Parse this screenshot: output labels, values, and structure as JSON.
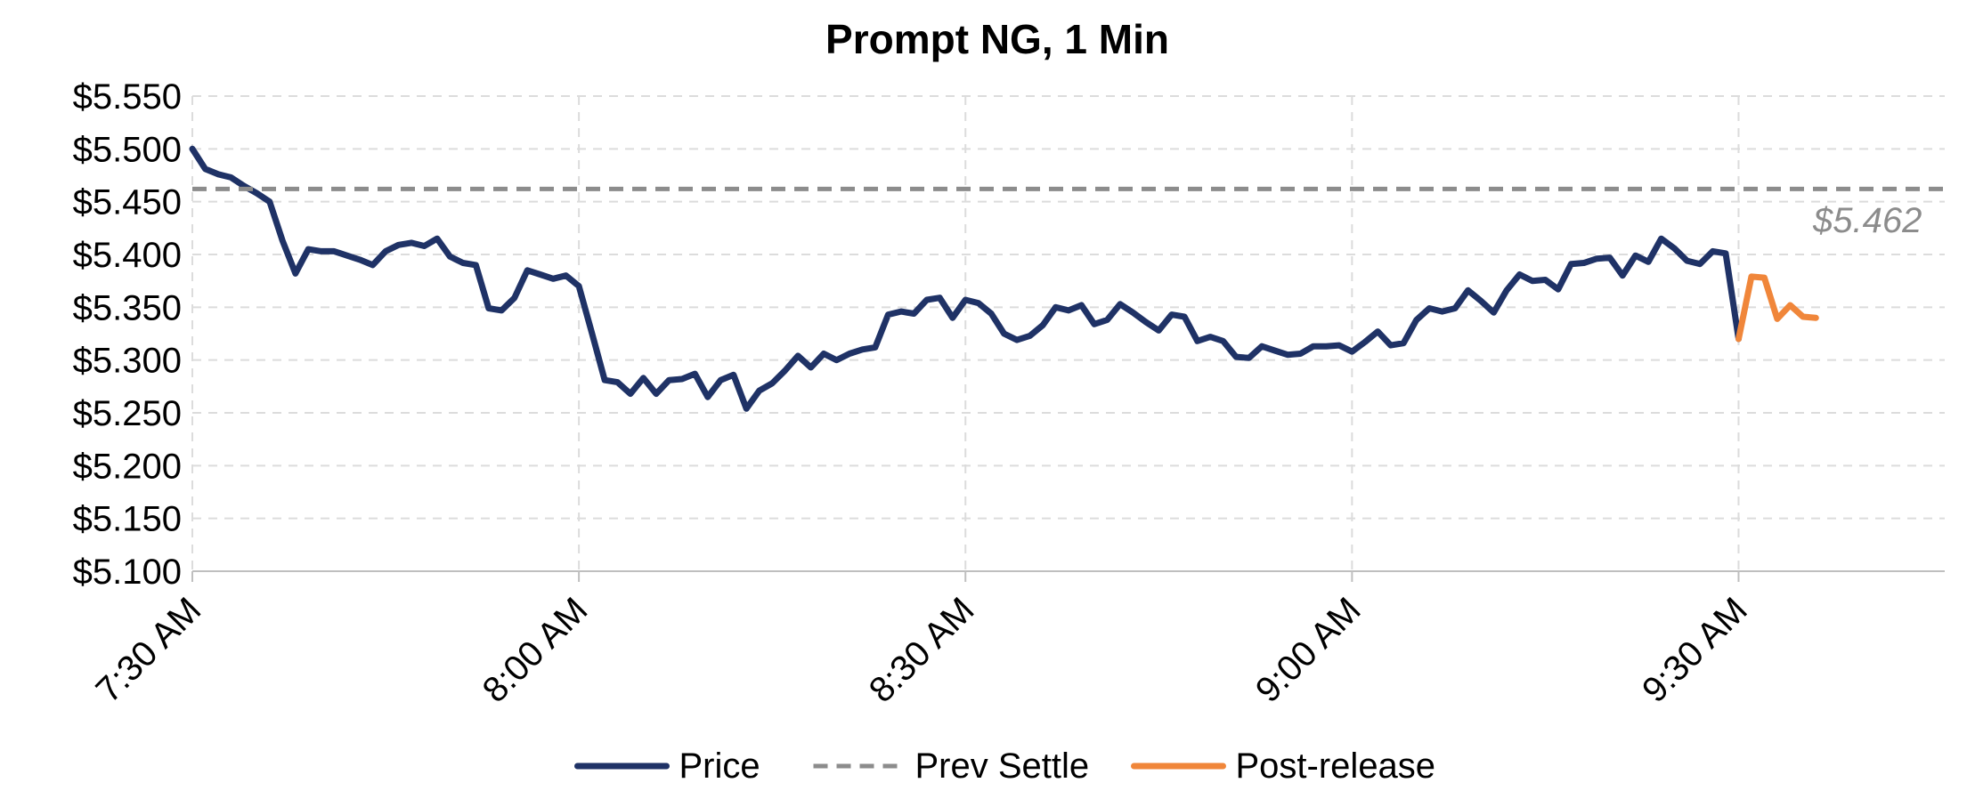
{
  "chart_data": {
    "type": "line",
    "title": "Prompt NG, 1 Min",
    "xlabel": "",
    "ylabel": "",
    "ylim": [
      5.1,
      5.55
    ],
    "y_ticks": [
      5.1,
      5.15,
      5.2,
      5.25,
      5.3,
      5.35,
      5.4,
      5.45,
      5.5,
      5.55
    ],
    "y_tick_labels": [
      "$5.100",
      "$5.150",
      "$5.200",
      "$5.250",
      "$5.300",
      "$5.350",
      "$5.400",
      "$5.450",
      "$5.500",
      "$5.550"
    ],
    "x_unit": "minutes after 7:30 AM",
    "xlim": [
      0,
      136
    ],
    "x_ticks": [
      0,
      30,
      60,
      90,
      120
    ],
    "x_tick_labels": [
      "7:30 AM",
      "8:00 AM",
      "8:30 AM",
      "9:00 AM",
      "9:30 AM"
    ],
    "grid": true,
    "legend": "bottom",
    "series": [
      {
        "name": "Price",
        "color": "#1f3266",
        "style": "solid",
        "x": [
          0,
          1,
          2,
          3,
          4,
          5,
          6,
          7,
          8,
          9,
          10,
          11,
          12,
          13,
          14,
          15,
          16,
          17,
          18,
          19,
          20,
          21,
          22,
          23,
          24,
          25,
          26,
          27,
          28,
          29,
          30,
          31,
          32,
          33,
          34,
          35,
          36,
          37,
          38,
          39,
          40,
          41,
          42,
          43,
          44,
          45,
          46,
          47,
          48,
          49,
          50,
          51,
          52,
          53,
          54,
          55,
          56,
          57,
          58,
          59,
          60,
          61,
          62,
          63,
          64,
          65,
          66,
          67,
          68,
          69,
          70,
          71,
          72,
          73,
          74,
          75,
          76,
          77,
          78,
          79,
          80,
          81,
          82,
          83,
          84,
          85,
          86,
          87,
          88,
          89,
          90,
          91,
          92,
          93,
          94,
          95,
          96,
          97,
          98,
          99,
          100,
          101,
          102,
          103,
          104,
          105,
          106,
          107,
          108,
          109,
          110,
          111,
          112,
          113,
          114,
          115,
          116,
          117,
          118,
          119,
          120
        ],
        "values": [
          5.5,
          5.481,
          5.476,
          5.473,
          5.465,
          5.458,
          5.45,
          5.413,
          5.382,
          5.405,
          5.403,
          5.403,
          5.399,
          5.395,
          5.39,
          5.403,
          5.409,
          5.411,
          5.408,
          5.415,
          5.398,
          5.392,
          5.39,
          5.349,
          5.347,
          5.359,
          5.385,
          5.381,
          5.377,
          5.38,
          5.37,
          5.326,
          5.281,
          5.279,
          5.268,
          5.283,
          5.268,
          5.281,
          5.282,
          5.287,
          5.265,
          5.281,
          5.286,
          5.254,
          5.271,
          5.278,
          5.29,
          5.304,
          5.293,
          5.306,
          5.3,
          5.306,
          5.31,
          5.312,
          5.343,
          5.346,
          5.344,
          5.357,
          5.359,
          5.34,
          5.357,
          5.354,
          5.344,
          5.325,
          5.319,
          5.323,
          5.333,
          5.35,
          5.347,
          5.352,
          5.334,
          5.338,
          5.353,
          5.345,
          5.336,
          5.328,
          5.343,
          5.341,
          5.318,
          5.322,
          5.318,
          5.303,
          5.302,
          5.313,
          5.309,
          5.305,
          5.306,
          5.313,
          5.313,
          5.314,
          5.308,
          5.317,
          5.327,
          5.314,
          5.316,
          5.338,
          5.349,
          5.346,
          5.349,
          5.366,
          5.356,
          5.345,
          5.366,
          5.381,
          5.375,
          5.376,
          5.367,
          5.391,
          5.392,
          5.396,
          5.397,
          5.38,
          5.399,
          5.393,
          5.415,
          5.406,
          5.394,
          5.391,
          5.403,
          5.401,
          5.32
        ]
      },
      {
        "name": "Prev Settle",
        "color": "#8c8c8c",
        "style": "dashed",
        "x": [
          0,
          136
        ],
        "values": [
          5.462,
          5.462
        ]
      },
      {
        "name": "Post-release",
        "color": "#f0863a",
        "style": "solid",
        "x": [
          120,
          121,
          122,
          123,
          124,
          125,
          126
        ],
        "values": [
          5.32,
          5.379,
          5.378,
          5.339,
          5.352,
          5.341,
          5.34
        ]
      }
    ],
    "annotations": [
      {
        "text": "$5.462",
        "x": 130,
        "y": 5.421
      }
    ]
  }
}
